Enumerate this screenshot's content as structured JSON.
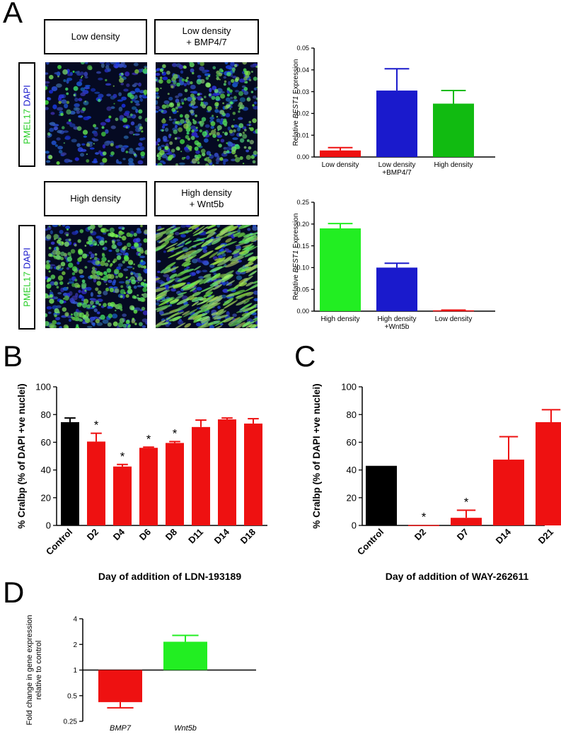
{
  "panels": {
    "A": "A",
    "B": "B",
    "C": "C",
    "D": "D"
  },
  "panelA": {
    "top_labels": [
      "Low density",
      "Low density\n+ BMP4/7"
    ],
    "bottom_labels": [
      "High density",
      "High density\n+ Wnt5b"
    ],
    "stain_green": "PMEL17",
    "stain_blue": "DAPI"
  },
  "chart_data": [
    {
      "id": "A-top",
      "type": "bar",
      "categories": [
        "Low density",
        "Low density\n+BMP4/7",
        "High density"
      ],
      "values": [
        0.003,
        0.0305,
        0.0245
      ],
      "errors": [
        0.0013,
        0.01,
        0.006
      ],
      "colors": [
        "#ee1111",
        "#1a1acc",
        "#11bb11"
      ],
      "ylabel_pre": "Relative ",
      "ylabel_ital": "BEST1",
      "ylabel_post": " Expression",
      "ylim": [
        0,
        0.05
      ],
      "yticks": [
        0,
        0.01,
        0.02,
        0.03,
        0.04,
        0.05
      ],
      "ytick_labels": [
        "0.00",
        "0.01",
        "0.02",
        "0.03",
        "0.04",
        "0.05"
      ]
    },
    {
      "id": "A-bottom",
      "type": "bar",
      "categories": [
        "High density",
        "High density\n+Wnt5b",
        "Low density"
      ],
      "values": [
        0.19,
        0.1,
        0.002
      ],
      "errors": [
        0.011,
        0.01,
        0.0005
      ],
      "colors": [
        "#22ee22",
        "#1a1acc",
        "#ee1111"
      ],
      "ylabel_pre": "Relative ",
      "ylabel_ital": "BEST1",
      "ylabel_post": " Expression",
      "ylim": [
        0,
        0.25
      ],
      "yticks": [
        0,
        0.05,
        0.1,
        0.15,
        0.2,
        0.25
      ],
      "ytick_labels": [
        "0.00",
        "0.05",
        "0.10",
        "0.15",
        "0.20",
        "0.25"
      ]
    },
    {
      "id": "B",
      "type": "bar",
      "categories": [
        "Control",
        "D2",
        "D4",
        "D6",
        "D8",
        "D11",
        "D14",
        "D18"
      ],
      "values": [
        74.5,
        60.5,
        42.5,
        56,
        59.5,
        71,
        76.5,
        73.5
      ],
      "errors": [
        3,
        6,
        1.5,
        0.5,
        1,
        5,
        1,
        3.5
      ],
      "colors": [
        "#000000",
        "#ee1111",
        "#ee1111",
        "#ee1111",
        "#ee1111",
        "#ee1111",
        "#ee1111",
        "#ee1111"
      ],
      "significant": [
        false,
        true,
        true,
        true,
        true,
        false,
        false,
        false
      ],
      "star": "*",
      "ylabel": "% Cralbp (% of DAPI +ve nuclei)",
      "xlabel": "Day of addition of LDN-193189",
      "ylim": [
        0,
        100
      ],
      "yticks": [
        0,
        20,
        40,
        60,
        80,
        100
      ],
      "ytick_labels": [
        "0",
        "20",
        "40",
        "60",
        "80",
        "100"
      ]
    },
    {
      "id": "C",
      "type": "bar",
      "categories": [
        "Control",
        "D2",
        "D7",
        "D14",
        "D21"
      ],
      "values": [
        43,
        0.3,
        5.5,
        47.5,
        74.5
      ],
      "errors": [
        0,
        0,
        5.5,
        16.5,
        9
      ],
      "colors": [
        "#000000",
        "#ee1111",
        "#ee1111",
        "#ee1111",
        "#ee1111"
      ],
      "significant": [
        false,
        true,
        true,
        false,
        false
      ],
      "star": "*",
      "ylabel": "% Cralbp (% of DAPI +ve nuclei)",
      "xlabel": "Day of addition of WAY-262611",
      "ylim": [
        0,
        100
      ],
      "yticks": [
        0,
        20,
        40,
        60,
        80,
        100
      ],
      "ytick_labels": [
        "0",
        "20",
        "40",
        "60",
        "80",
        "100"
      ]
    },
    {
      "id": "D",
      "type": "bar",
      "scale": "log2",
      "categories": [
        "BMP7",
        "Wnt5b"
      ],
      "values": [
        0.42,
        2.15
      ],
      "error_ends": [
        0.36,
        2.55
      ],
      "colors": [
        "#ee1111",
        "#22ee22"
      ],
      "ylabel_lines": [
        "Fold change in gene expression",
        "relative to control"
      ],
      "ylim": [
        0.25,
        4
      ],
      "yticks": [
        0.25,
        0.5,
        1,
        2,
        4
      ],
      "ytick_labels": [
        "0.25",
        "0.5",
        "1",
        "2",
        "4"
      ]
    }
  ]
}
